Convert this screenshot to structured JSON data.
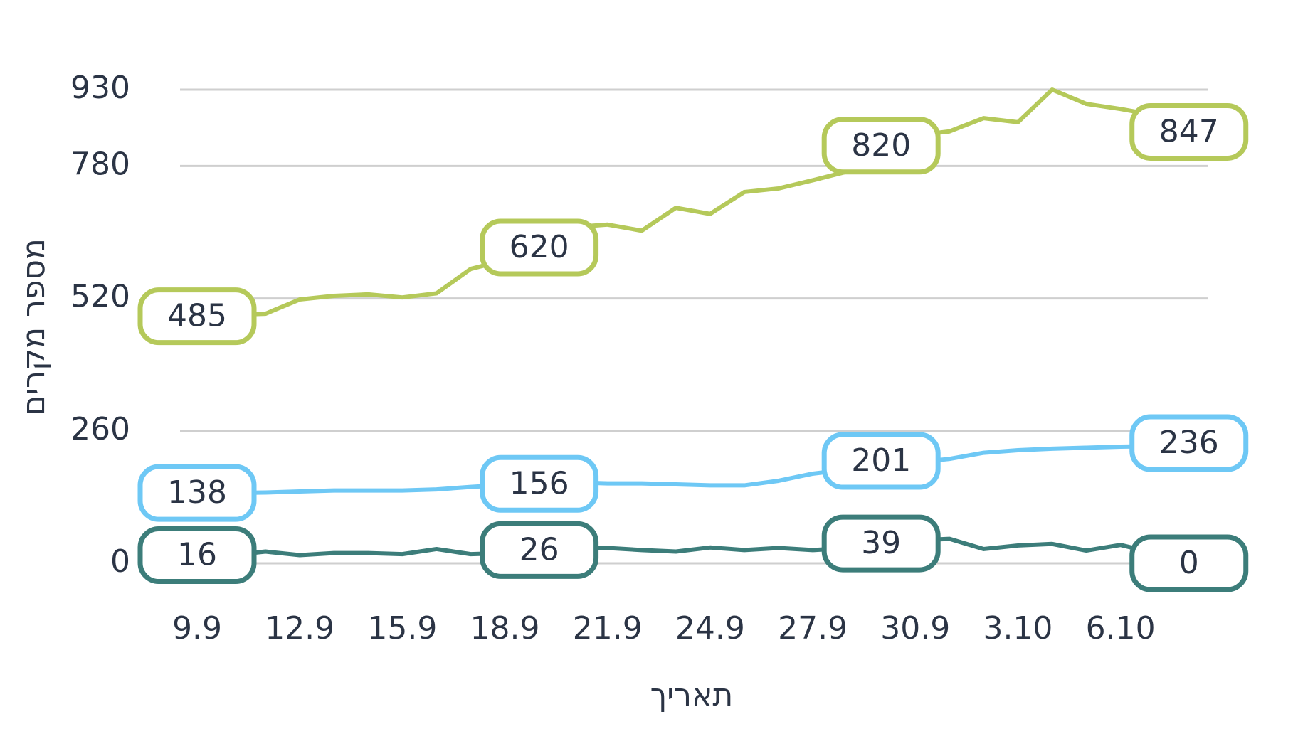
{
  "chart_data": {
    "type": "line",
    "x_label": "תאריך",
    "y_label": "מספר מקרים",
    "categories": [
      "9.9",
      null,
      null,
      "12.9",
      null,
      null,
      "15.9",
      null,
      null,
      "18.9",
      null,
      null,
      "21.9",
      null,
      null,
      "24.9",
      null,
      null,
      "27.9",
      null,
      null,
      "30.9",
      null,
      null,
      "3.10",
      null,
      null,
      "6.10",
      null,
      null
    ],
    "series": [
      {
        "name": "green",
        "color": "#b5c95a",
        "values": [
          485,
          488,
          490,
          518,
          525,
          528,
          522,
          530,
          578,
          595,
          620,
          660,
          665,
          653,
          698,
          686,
          729,
          736,
          752,
          769,
          820,
          840,
          848,
          874,
          866,
          930,
          902,
          892,
          880,
          847
        ]
      },
      {
        "name": "blue",
        "color": "#6ec8f5",
        "values": [
          138,
          138,
          139,
          141,
          143,
          143,
          143,
          145,
          150,
          154,
          156,
          159,
          157,
          157,
          155,
          153,
          153,
          162,
          176,
          184,
          201,
          198,
          205,
          217,
          222,
          225,
          227,
          229,
          230,
          236
        ]
      },
      {
        "name": "teal",
        "color": "#3c7d7a",
        "values": [
          16,
          16,
          23,
          16,
          20,
          20,
          18,
          28,
          18,
          20,
          26,
          28,
          30,
          26,
          23,
          31,
          26,
          30,
          26,
          30,
          39,
          45,
          48,
          28,
          35,
          38,
          25,
          36,
          20,
          0
        ]
      }
    ],
    "labeled_points": [
      0,
      10,
      20,
      29
    ],
    "ylim": [
      0,
      930
    ],
    "yticks": [
      0,
      260,
      520,
      780,
      930
    ],
    "grid": true
  }
}
